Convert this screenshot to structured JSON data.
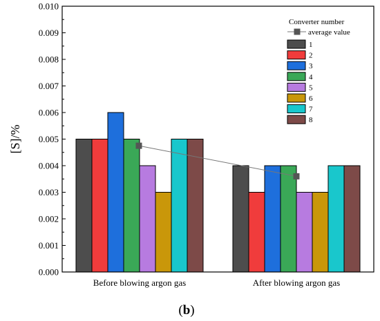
{
  "chart_data": {
    "type": "bar",
    "title": "",
    "xlabel": "",
    "ylabel": "[S]/%",
    "ylim": [
      0,
      0.01
    ],
    "yticks": [
      "0.000",
      "0.001",
      "0.002",
      "0.003",
      "0.004",
      "0.005",
      "0.006",
      "0.007",
      "0.008",
      "0.009",
      "0.010"
    ],
    "categories": [
      "Before blowing argon gas",
      "After blowing argon gas"
    ],
    "legend_title": "Converter number",
    "legend_position": "top-right",
    "grid": false,
    "series": [
      {
        "name": "1",
        "color": "#4d4d4d",
        "values": [
          0.005,
          0.004
        ]
      },
      {
        "name": "2",
        "color": "#f03c3c",
        "values": [
          0.005,
          0.003
        ]
      },
      {
        "name": "3",
        "color": "#1e6fdc",
        "values": [
          0.006,
          0.004
        ]
      },
      {
        "name": "4",
        "color": "#3aa857",
        "values": [
          0.005,
          0.004
        ]
      },
      {
        "name": "5",
        "color": "#b77be0",
        "values": [
          0.004,
          0.003
        ]
      },
      {
        "name": "6",
        "color": "#c9970a",
        "values": [
          0.003,
          0.003
        ]
      },
      {
        "name": "7",
        "color": "#19c7cc",
        "values": [
          0.005,
          0.004
        ]
      },
      {
        "name": "8",
        "color": "#7d4a48",
        "values": [
          0.005,
          0.004
        ]
      }
    ],
    "line_series": {
      "name": "average value",
      "color": "#555555",
      "values": [
        0.00475,
        0.0036
      ]
    }
  },
  "figure_label": {
    "open": "(",
    "letter": "b",
    "close": ")"
  }
}
